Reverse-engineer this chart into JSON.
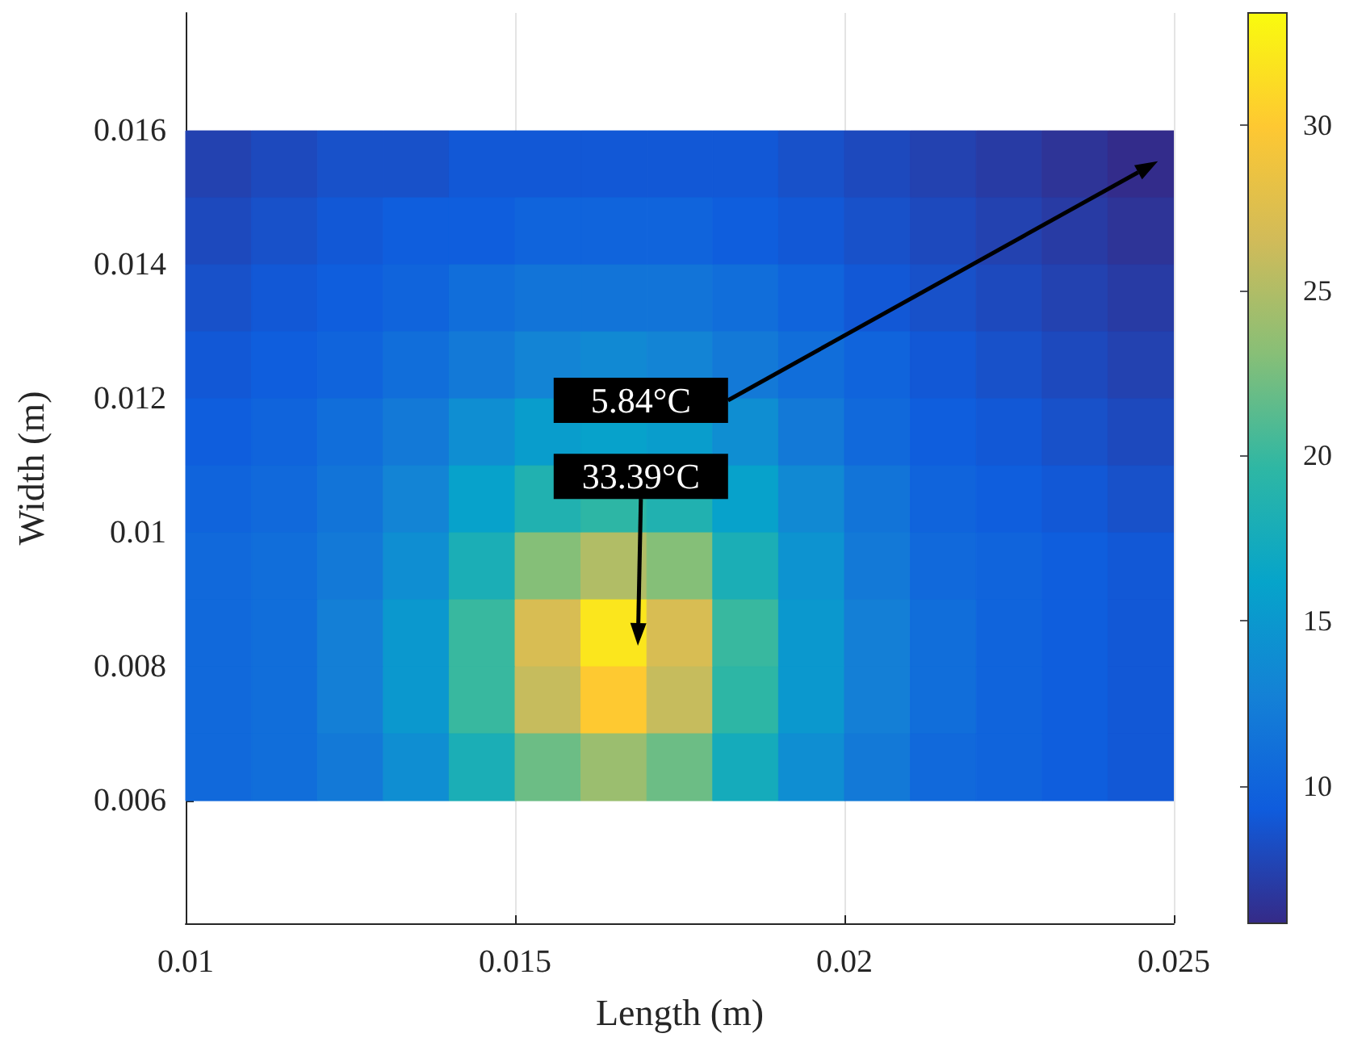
{
  "chart_data": {
    "type": "heatmap",
    "xlabel": "Length (m)",
    "ylabel": "Width (m)",
    "x": [
      0.0105,
      0.0115,
      0.0125,
      0.0135,
      0.0145,
      0.0155,
      0.0165,
      0.0175,
      0.0185,
      0.0195,
      0.0205,
      0.0215,
      0.0225,
      0.0235,
      0.0245
    ],
    "y": [
      0.0155,
      0.0145,
      0.0135,
      0.0125,
      0.0115,
      0.0105,
      0.0095,
      0.0085,
      0.0075,
      0.0065
    ],
    "cells": [
      [
        7.5,
        8,
        8.5,
        8.5,
        9,
        9,
        9,
        9,
        9,
        8.5,
        8,
        7.5,
        7,
        6.5,
        6
      ],
      [
        8,
        8.5,
        9,
        9.5,
        9.5,
        10,
        10,
        10,
        9.5,
        9,
        8.5,
        8,
        7.5,
        7,
        6.5
      ],
      [
        8.5,
        9,
        9.5,
        10,
        11,
        11.5,
        11.5,
        11.5,
        11,
        10,
        9,
        8.5,
        8,
        7.5,
        7
      ],
      [
        9,
        9.5,
        10,
        11,
        12,
        13,
        13.5,
        13,
        12,
        11,
        10,
        9,
        8.5,
        8,
        7.5
      ],
      [
        9.5,
        10,
        11,
        12,
        14,
        15.5,
        16,
        15.5,
        14,
        12,
        10.5,
        9.5,
        9,
        8.5,
        8
      ],
      [
        10,
        10.5,
        11.5,
        13,
        16,
        18.5,
        19.5,
        18.5,
        16,
        13.5,
        11.5,
        10,
        9.5,
        9,
        8.5
      ],
      [
        10.5,
        11,
        12,
        14,
        18,
        23,
        25,
        23,
        18,
        14.5,
        12,
        10.5,
        10,
        9.5,
        9
      ],
      [
        10.5,
        11,
        12.5,
        15,
        20,
        27,
        32,
        27,
        20,
        15,
        12.5,
        11,
        10,
        9.5,
        9
      ],
      [
        10.5,
        11,
        12.5,
        15,
        20,
        26,
        30,
        26,
        19.5,
        15,
        12.5,
        11,
        10,
        9.5,
        9
      ],
      [
        10.5,
        11,
        12,
        14,
        18,
        22,
        24,
        22,
        17.5,
        14,
        12,
        10.5,
        10,
        9.5,
        9
      ]
    ],
    "clim": [
      5.84,
      33.39
    ],
    "cticks": [
      10,
      15,
      20,
      25,
      30
    ],
    "xlim": [
      0.01,
      0.025
    ],
    "xticks": [
      0.01,
      0.015,
      0.02,
      0.025
    ],
    "ylim": [
      0.00417,
      0.01776
    ],
    "yticks": [
      0.006,
      0.008,
      0.01,
      0.012,
      0.014,
      0.016
    ],
    "grid": "x",
    "annotations": [
      "5.84°C",
      "33.39°C"
    ]
  }
}
